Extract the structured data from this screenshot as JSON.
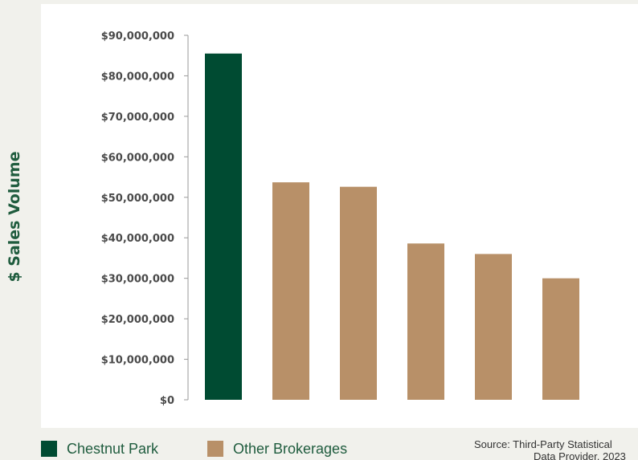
{
  "chart_data": {
    "type": "bar",
    "title": "",
    "xlabel": "",
    "ylabel": "$ Sales Volume",
    "ylim": [
      0,
      90000000
    ],
    "yticks": [
      "$0",
      "$10,000,000",
      "$20,000,000",
      "$30,000,000",
      "$40,000,000",
      "$50,000,000",
      "$60,000,000",
      "$70,000,000",
      "$80,000,000",
      "$90,000,000"
    ],
    "ytick_values": [
      0,
      10000000,
      20000000,
      30000000,
      40000000,
      50000000,
      60000000,
      70000000,
      80000000,
      90000000
    ],
    "grid": false,
    "legend_position": "bottom-left",
    "bars": [
      {
        "value": 85500000,
        "group": "Chestnut Park"
      },
      {
        "value": 53700000,
        "group": "Other Brokerages"
      },
      {
        "value": 52600000,
        "group": "Other Brokerages"
      },
      {
        "value": 38600000,
        "group": "Other Brokerages"
      },
      {
        "value": 36000000,
        "group": "Other Brokerages"
      },
      {
        "value": 30000000,
        "group": "Other Brokerages"
      }
    ],
    "legend": [
      {
        "name": "Chestnut Park",
        "color": "#004b32"
      },
      {
        "name": "Other Brokerages",
        "color": "#b89068"
      }
    ]
  },
  "source": {
    "line1": "Source: Third-Party Statistical",
    "line2": "Data Provider, 2023"
  },
  "colors": {
    "ylabel": "#1f5c3e",
    "axis": "#9a9a9a",
    "tick_text": "#4a4a4a"
  }
}
